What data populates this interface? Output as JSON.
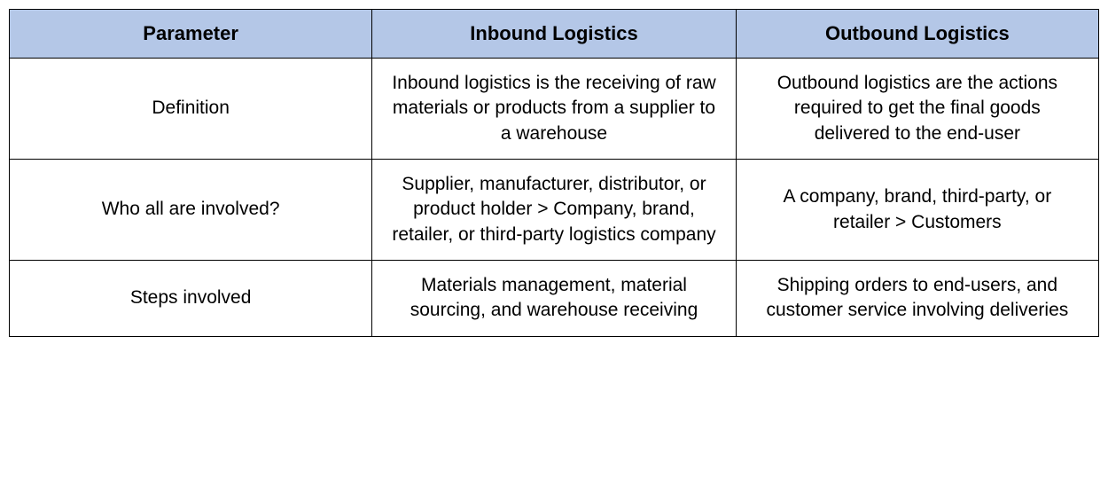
{
  "table": {
    "type": "table",
    "header_bg_color": "#b4c7e7",
    "border_color": "#000000",
    "border_width": 1.5,
    "background_color": "#ffffff",
    "header_fontsize": 22,
    "header_fontweight": "bold",
    "cell_fontsize": 21,
    "text_align": "center",
    "columns": [
      {
        "key": "parameter",
        "label": "Parameter",
        "width_pct": 33.3
      },
      {
        "key": "inbound",
        "label": "Inbound Logistics",
        "width_pct": 33.4
      },
      {
        "key": "outbound",
        "label": "Outbound Logistics",
        "width_pct": 33.3
      }
    ],
    "rows": [
      {
        "parameter": "Definition",
        "inbound": "Inbound logistics is the receiving of raw materials or products from a supplier to a warehouse",
        "outbound": "Outbound logistics are the actions required to get the final goods delivered to the end-user"
      },
      {
        "parameter": "Who all are involved?",
        "inbound": "Supplier, manufacturer, distributor, or product holder > Company, brand, retailer, or third-party logistics company",
        "outbound": "A company, brand, third-party, or retailer > Customers"
      },
      {
        "parameter": "Steps involved",
        "inbound": "Materials management, material sourcing, and warehouse receiving",
        "outbound": "Shipping orders to end-users, and customer service involving deliveries"
      }
    ]
  }
}
